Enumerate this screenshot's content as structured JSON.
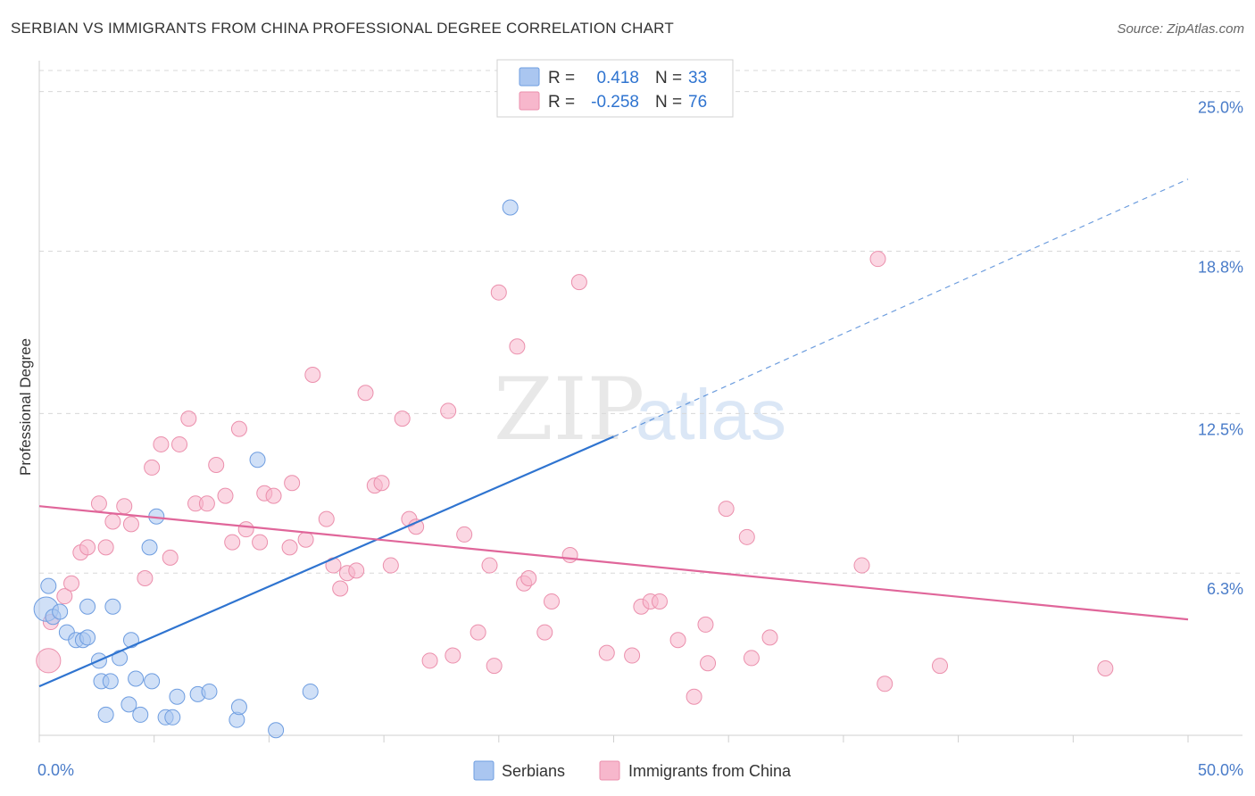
{
  "header": {
    "title": "SERBIAN VS IMMIGRANTS FROM CHINA PROFESSIONAL DEGREE CORRELATION CHART",
    "source": "Source: ZipAtlas.com"
  },
  "watermark": {
    "zip": "ZIP",
    "atlas": "atlas"
  },
  "colors": {
    "serbians_fill": "#aac6f0",
    "serbians_stroke": "#6e9de0",
    "serbians_line": "#2f74d0",
    "china_fill": "#f7b7cc",
    "china_stroke": "#eb8fac",
    "china_line": "#e0669a",
    "tick_label": "#4a7cc9",
    "grid": "#d8d8d8"
  },
  "legend": {
    "rows": [
      {
        "r_label": "R =",
        "r_value": "0.418",
        "n_label": "N =",
        "n_value": "33"
      },
      {
        "r_label": "R =",
        "r_value": "-0.258",
        "n_label": "N =",
        "n_value": "76"
      }
    ]
  },
  "chart_data": {
    "type": "scatter",
    "title": "SERBIAN VS IMMIGRANTS FROM CHINA PROFESSIONAL DEGREE CORRELATION CHART",
    "xlabel": "",
    "ylabel": "Professional Degree",
    "xlim": [
      0,
      50
    ],
    "ylim": [
      0,
      26.2
    ],
    "x_tick_labels": [
      "0.0%",
      "50.0%"
    ],
    "y_ticks": [
      6.3,
      12.5,
      18.8,
      25.0
    ],
    "y_tick_labels": [
      "6.3%",
      "12.5%",
      "18.8%",
      "25.0%"
    ],
    "grid": true,
    "legend_position": "top-center",
    "series": [
      {
        "name": "Serbians",
        "r": 0.418,
        "n": 33,
        "trend": {
          "x_solid": [
            0,
            25
          ],
          "y_solid": [
            1.9,
            11.6
          ],
          "x_dashed": [
            25,
            50
          ],
          "y_dashed": [
            11.6,
            21.6
          ]
        },
        "points": [
          [
            0.3,
            4.9,
            1.6
          ],
          [
            0.4,
            5.8,
            1
          ],
          [
            0.6,
            4.6,
            1
          ],
          [
            0.9,
            4.8,
            1
          ],
          [
            1.2,
            4.0,
            1
          ],
          [
            1.6,
            3.7,
            1
          ],
          [
            1.9,
            3.7,
            1
          ],
          [
            2.1,
            3.8,
            1
          ],
          [
            2.1,
            5.0,
            1
          ],
          [
            2.6,
            2.9,
            1
          ],
          [
            2.7,
            2.1,
            1
          ],
          [
            2.9,
            0.8,
            1
          ],
          [
            3.1,
            2.1,
            1
          ],
          [
            3.2,
            5.0,
            1
          ],
          [
            3.5,
            3.0,
            1
          ],
          [
            3.9,
            1.2,
            1
          ],
          [
            4.0,
            3.7,
            1
          ],
          [
            4.2,
            2.2,
            1
          ],
          [
            4.4,
            0.8,
            1
          ],
          [
            4.9,
            2.1,
            1
          ],
          [
            4.8,
            7.3,
            1
          ],
          [
            5.1,
            8.5,
            1
          ],
          [
            5.5,
            0.7,
            1
          ],
          [
            5.8,
            0.7,
            1
          ],
          [
            6.0,
            1.5,
            1
          ],
          [
            6.9,
            1.6,
            1
          ],
          [
            7.4,
            1.7,
            1
          ],
          [
            8.6,
            0.6,
            1
          ],
          [
            8.7,
            1.1,
            1
          ],
          [
            9.5,
            10.7,
            1
          ],
          [
            10.3,
            0.2,
            1
          ],
          [
            11.8,
            1.7,
            1
          ],
          [
            20.5,
            20.5,
            1
          ]
        ]
      },
      {
        "name": "Immigrants from China",
        "r": -0.258,
        "n": 76,
        "trend": {
          "x": [
            0,
            50
          ],
          "y": [
            8.9,
            4.5
          ]
        },
        "points": [
          [
            0.4,
            2.9,
            1.6
          ],
          [
            0.5,
            4.4,
            1
          ],
          [
            1.1,
            5.4,
            1
          ],
          [
            1.4,
            5.9,
            1
          ],
          [
            1.8,
            7.1,
            1
          ],
          [
            2.1,
            7.3,
            1
          ],
          [
            2.6,
            9.0,
            1
          ],
          [
            2.9,
            7.3,
            1
          ],
          [
            3.2,
            8.3,
            1
          ],
          [
            3.7,
            8.9,
            1
          ],
          [
            4.0,
            8.2,
            1
          ],
          [
            4.6,
            6.1,
            1
          ],
          [
            4.9,
            10.4,
            1
          ],
          [
            5.3,
            11.3,
            1
          ],
          [
            5.7,
            6.9,
            1
          ],
          [
            6.1,
            11.3,
            1
          ],
          [
            6.5,
            12.3,
            1
          ],
          [
            6.8,
            9.0,
            1
          ],
          [
            7.3,
            9.0,
            1
          ],
          [
            7.7,
            10.5,
            1
          ],
          [
            8.1,
            9.3,
            1
          ],
          [
            8.4,
            7.5,
            1
          ],
          [
            8.7,
            11.9,
            1
          ],
          [
            9.0,
            8.0,
            1
          ],
          [
            9.6,
            7.5,
            1
          ],
          [
            9.8,
            9.4,
            1
          ],
          [
            10.2,
            9.3,
            1
          ],
          [
            10.9,
            7.3,
            1
          ],
          [
            11.0,
            9.8,
            1
          ],
          [
            11.6,
            7.6,
            1
          ],
          [
            11.9,
            14.0,
            1
          ],
          [
            12.5,
            8.4,
            1
          ],
          [
            12.8,
            6.6,
            1
          ],
          [
            13.1,
            5.7,
            1
          ],
          [
            13.4,
            6.3,
            1
          ],
          [
            13.8,
            6.4,
            1
          ],
          [
            14.2,
            13.3,
            1
          ],
          [
            14.6,
            9.7,
            1
          ],
          [
            14.9,
            9.8,
            1
          ],
          [
            15.3,
            6.6,
            1
          ],
          [
            15.8,
            12.3,
            1
          ],
          [
            16.1,
            8.4,
            1
          ],
          [
            16.4,
            8.1,
            1
          ],
          [
            17.0,
            2.9,
            1
          ],
          [
            17.8,
            12.6,
            1
          ],
          [
            18.0,
            3.1,
            1
          ],
          [
            18.5,
            7.8,
            1
          ],
          [
            19.1,
            4.0,
            1
          ],
          [
            19.6,
            6.6,
            1
          ],
          [
            19.8,
            2.7,
            1
          ],
          [
            20.0,
            17.2,
            1
          ],
          [
            20.8,
            15.1,
            1
          ],
          [
            21.1,
            5.9,
            1
          ],
          [
            21.3,
            6.1,
            1
          ],
          [
            22.0,
            4.0,
            1
          ],
          [
            22.3,
            5.2,
            1
          ],
          [
            23.1,
            7.0,
            1
          ],
          [
            23.5,
            17.6,
            1
          ],
          [
            24.7,
            3.2,
            1
          ],
          [
            25.8,
            3.1,
            1
          ],
          [
            26.2,
            5.0,
            1
          ],
          [
            26.6,
            5.2,
            1
          ],
          [
            27.0,
            5.2,
            1
          ],
          [
            27.8,
            3.7,
            1
          ],
          [
            28.5,
            1.5,
            1
          ],
          [
            29.0,
            4.3,
            1
          ],
          [
            29.1,
            2.8,
            1
          ],
          [
            29.9,
            8.8,
            1
          ],
          [
            30.8,
            7.7,
            1
          ],
          [
            31.0,
            3.0,
            1
          ],
          [
            31.8,
            3.8,
            1
          ],
          [
            35.8,
            6.6,
            1
          ],
          [
            36.5,
            18.5,
            1
          ],
          [
            36.8,
            2.0,
            1
          ],
          [
            39.2,
            2.7,
            1
          ],
          [
            46.4,
            2.6,
            1
          ]
        ]
      }
    ]
  },
  "bottom_legend": {
    "items": [
      {
        "label": "Serbians"
      },
      {
        "label": "Immigrants from China"
      }
    ]
  }
}
